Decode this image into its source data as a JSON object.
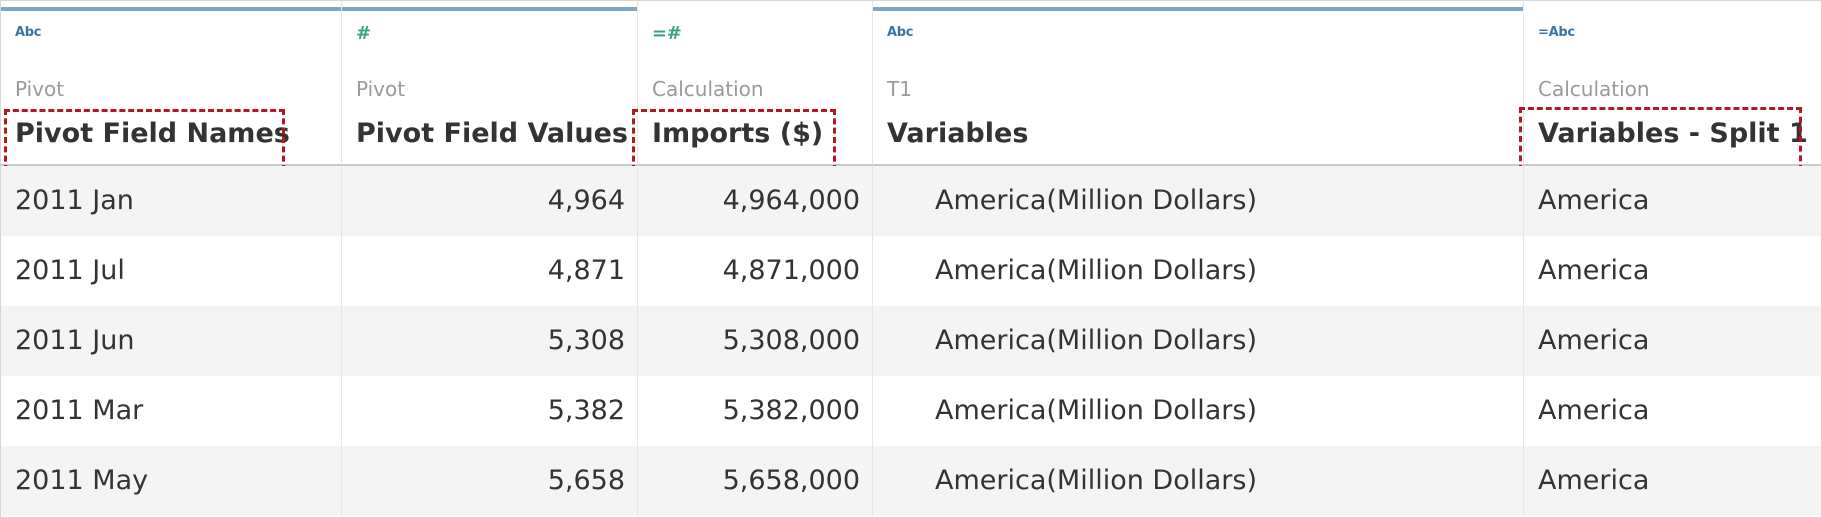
{
  "columns": [
    {
      "type_icon": "Abc",
      "type_icon_name": "string-type-icon",
      "source": "Pivot",
      "name": "Pivot Field Names"
    },
    {
      "type_icon": "#",
      "type_icon_name": "number-type-icon",
      "source": "Pivot",
      "name": "Pivot Field Values"
    },
    {
      "type_icon": "=#",
      "type_icon_name": "calculated-number-type-icon",
      "source": "Calculation",
      "name": "Imports ($)"
    },
    {
      "type_icon": "Abc",
      "type_icon_name": "string-type-icon",
      "source": "T1",
      "name": "Variables"
    },
    {
      "type_icon": "=Abc",
      "type_icon_name": "calculated-string-type-icon",
      "source": "Calculation",
      "name": "Variables - Split 1"
    }
  ],
  "rows": [
    {
      "c0": "2011 Jan",
      "c1": "4,964",
      "c2": "4,964,000",
      "c3": "America(Million Dollars)",
      "c4": "America"
    },
    {
      "c0": "2011 Jul",
      "c1": "4,871",
      "c2": "4,871,000",
      "c3": "America(Million Dollars)",
      "c4": "America"
    },
    {
      "c0": "2011 Jun",
      "c1": "5,308",
      "c2": "5,308,000",
      "c3": "America(Million Dollars)",
      "c4": "America"
    },
    {
      "c0": "2011 Mar",
      "c1": "5,382",
      "c2": "5,382,000",
      "c3": "America(Million Dollars)",
      "c4": "America"
    },
    {
      "c0": "2011 May",
      "c1": "5,658",
      "c2": "5,658,000",
      "c3": "America(Million Dollars)",
      "c4": "America"
    }
  ],
  "colors": {
    "header_accent": "#7ea6c9",
    "highlight": "#b5181f",
    "string_icon": "#3a77a6",
    "number_icon": "#3aa37a"
  }
}
